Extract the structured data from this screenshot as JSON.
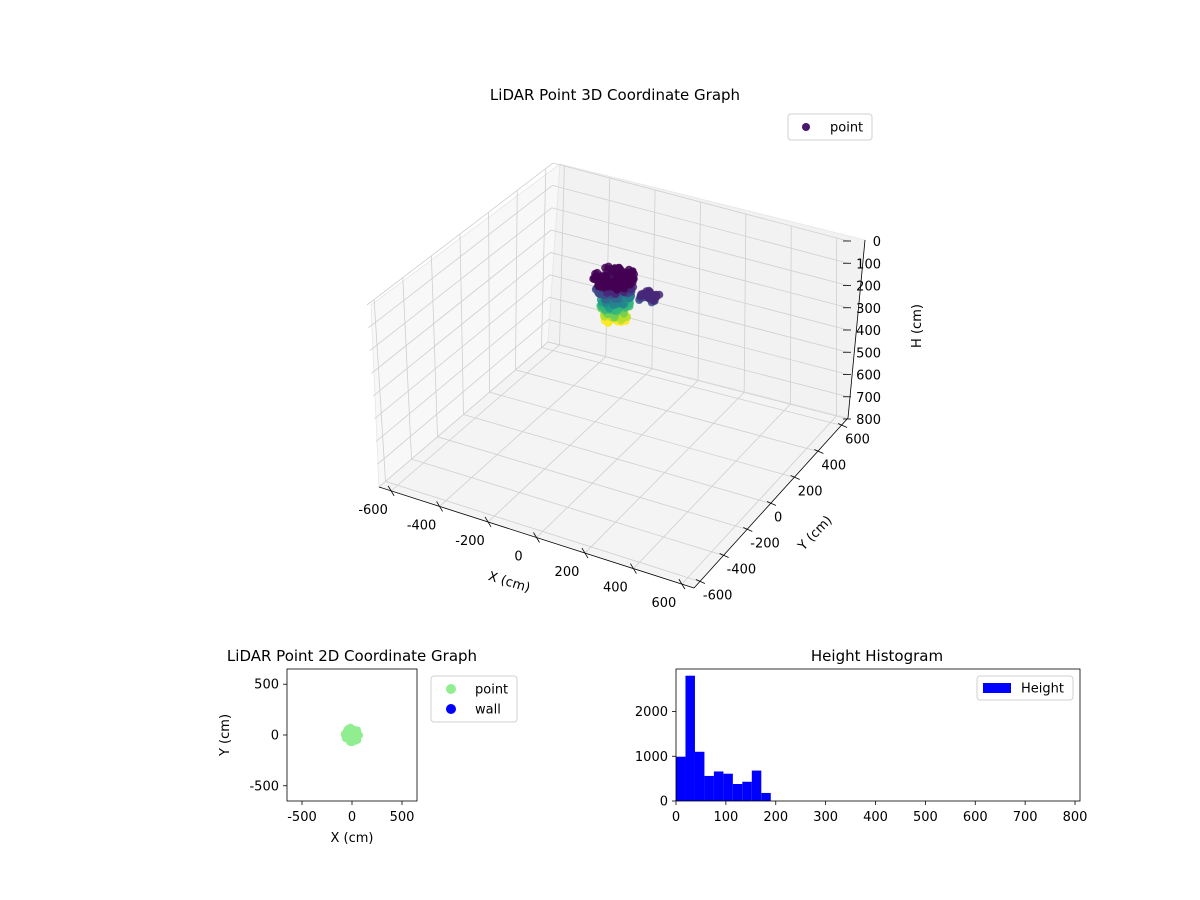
{
  "chart_data": [
    {
      "type": "scatter",
      "title": "LiDAR Point 3D Coordinate Graph",
      "xlabel": "X (cm)",
      "ylabel": "Y (cm)",
      "zlabel": "H (cm)",
      "xlim": [
        -650,
        650
      ],
      "ylim": [
        -650,
        650
      ],
      "zlim": [
        800,
        0
      ],
      "z_axis_inverted": true,
      "xticks": [
        -600,
        -400,
        -200,
        0,
        200,
        400,
        600
      ],
      "yticks": [
        -600,
        -400,
        -200,
        0,
        200,
        400,
        600
      ],
      "zticks": [
        0,
        100,
        200,
        300,
        400,
        500,
        600,
        700,
        800
      ],
      "legend": {
        "position": "top-right",
        "entries": [
          {
            "label": "point",
            "color": "#48186a"
          }
        ]
      },
      "colormap": "viridis",
      "point_cluster": {
        "x_range": [
          -80,
          80
        ],
        "y_range": [
          -60,
          100
        ],
        "h_range": [
          0,
          190
        ]
      },
      "grid": true
    },
    {
      "type": "scatter",
      "title": "LiDAR Point 2D Coordinate Graph",
      "xlabel": "X (cm)",
      "ylabel": "Y (cm)",
      "xlim": [
        -650,
        650
      ],
      "ylim": [
        -650,
        650
      ],
      "xticks": [
        -500,
        0,
        500
      ],
      "yticks": [
        -500,
        0,
        500
      ],
      "legend": {
        "position": "outside-right",
        "entries": [
          {
            "label": "point",
            "color": "#90ee90"
          },
          {
            "label": "wall",
            "color": "#0000ff"
          }
        ]
      },
      "point_cluster": {
        "x_range": [
          -80,
          80
        ],
        "y_range": [
          -60,
          100
        ]
      },
      "grid": false
    },
    {
      "type": "bar",
      "title": "Height Histogram",
      "xlabel": "",
      "ylabel": "",
      "xlim": [
        0,
        810
      ],
      "ylim": [
        0,
        2950
      ],
      "xticks": [
        0,
        100,
        200,
        300,
        400,
        500,
        600,
        700,
        800
      ],
      "yticks": [
        0,
        1000,
        2000
      ],
      "bin_width": 19,
      "bin_edges": [
        0,
        19,
        38,
        57,
        76,
        95,
        114,
        133,
        152,
        171,
        190
      ],
      "values": [
        990,
        2800,
        1100,
        560,
        660,
        610,
        380,
        430,
        680,
        180
      ],
      "color": "#0000ff",
      "legend": {
        "position": "top-right",
        "entries": [
          {
            "label": "Height",
            "color": "#0000ff"
          }
        ]
      },
      "grid": false
    }
  ]
}
